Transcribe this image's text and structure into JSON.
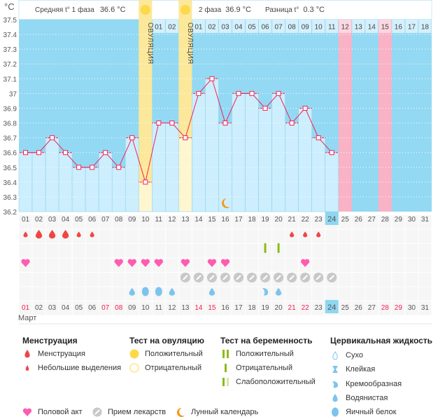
{
  "unit": "°C",
  "header": {
    "phase1_label": "Средняя t° 1 фаза",
    "phase1_value": "36.6 °C",
    "phase2_label": "2 фаза",
    "phase2_value": "36.9 °C",
    "diff_label": "Разница t°",
    "diff_value": "0.3 °C",
    "ovulation_text": "ОВУЛЯЦИЯ"
  },
  "colors": {
    "bar": "#cdeefc",
    "sky": "#93d9f3",
    "ovulation": "#fbe89a",
    "pink": "#f9b2c6",
    "line": "#f0245a",
    "weekend": "#ee2255"
  },
  "y_ticks": [
    "37.5",
    "37.4",
    "37.3",
    "37.2",
    "37.1",
    "37",
    "36.9",
    "36.8",
    "36.7",
    "36.6",
    "36.5",
    "36.4",
    "36.3",
    "36.2"
  ],
  "days": [
    "01",
    "02",
    "03",
    "04",
    "05",
    "06",
    "07",
    "08",
    "09",
    "10",
    "11",
    "12",
    "13",
    "14",
    "15",
    "16",
    "17",
    "18",
    "19",
    "20",
    "21",
    "22",
    "23",
    "24",
    "25",
    "26",
    "27",
    "28",
    "29",
    "30",
    "31"
  ],
  "today": "24",
  "weekend_days": [
    "01",
    "07",
    "08",
    "14",
    "15",
    "21",
    "22",
    "28",
    "29"
  ],
  "month": "Март",
  "cycle_days": [
    "",
    "",
    "",
    "",
    "",
    "",
    "",
    "",
    "",
    "OV",
    "01",
    "02",
    "OV",
    "01",
    "02",
    "03",
    "04",
    "05",
    "06",
    "07",
    "08",
    "09",
    "10",
    "11",
    "12",
    "13",
    "14",
    "15",
    "16",
    "17",
    "18"
  ],
  "pink_days": [
    "25",
    "28"
  ],
  "ovulation_days": [
    "10",
    "13"
  ],
  "chart_data": {
    "type": "line",
    "ylim": [
      36.2,
      37.5
    ],
    "x": [
      "01",
      "02",
      "03",
      "04",
      "05",
      "06",
      "07",
      "08",
      "09",
      "10",
      "11",
      "12",
      "13",
      "14",
      "15",
      "16",
      "17",
      "18",
      "19",
      "20",
      "21",
      "22",
      "23",
      "24"
    ],
    "values": [
      36.6,
      36.6,
      36.7,
      36.6,
      36.5,
      36.5,
      36.6,
      36.5,
      36.7,
      36.4,
      36.8,
      36.8,
      36.7,
      37.0,
      37.1,
      36.8,
      37.0,
      37.0,
      36.9,
      37.0,
      36.8,
      36.9,
      36.7,
      36.6
    ]
  },
  "moon_day": "16",
  "rows": {
    "menstruation": {
      "01": "small",
      "02": "big",
      "03": "big",
      "04": "big",
      "05": "small",
      "06": "small",
      "21": "small",
      "22": "small",
      "23": "small"
    },
    "pregnancy_test": {
      "19": "negative",
      "20": "negative"
    },
    "intercourse": [
      "01",
      "08",
      "09",
      "10",
      "11",
      "13",
      "15",
      "16",
      "22"
    ],
    "medication": [
      "13",
      "14",
      "15",
      "16",
      "17",
      "18",
      "19",
      "20",
      "21",
      "22",
      "23",
      "24"
    ],
    "cervical": {
      "09": "watery",
      "10": "eggwhite",
      "11": "eggwhite",
      "12": "watery",
      "15": "watery",
      "19": "creamy",
      "20": "watery"
    }
  },
  "legend": {
    "menstruation": {
      "title": "Менструация",
      "items": [
        "Менструация",
        "Небольшие выделения"
      ]
    },
    "ovulation_test": {
      "title": "Тест на овуляцию",
      "items": [
        "Положительный",
        "Отрицательный"
      ]
    },
    "pregnancy_test": {
      "title": "Тест на беременность",
      "items": [
        "Положительный",
        "Отрицательный",
        "Слабоположительный"
      ]
    },
    "cervical": {
      "title": "Цервикальная жидкость",
      "items": [
        "Сухо",
        "Клейкая",
        "Кремообразная",
        "Водянистая",
        "Яичный белок"
      ]
    },
    "intercourse": "Половой акт",
    "medication": "Прием лекарств",
    "moon": "Лунный календарь"
  }
}
